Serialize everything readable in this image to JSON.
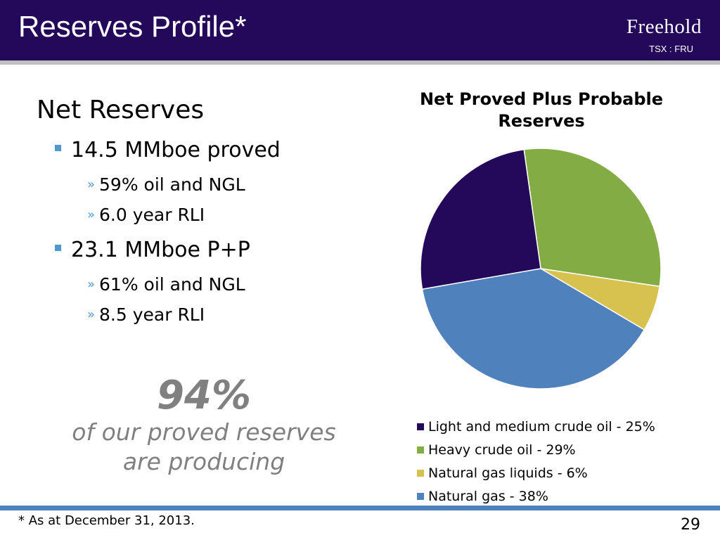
{
  "header": {
    "title": "Reserves Profile*",
    "logo": "Freehold",
    "ticker": "TSX : FRU",
    "bg_color": "#24085a"
  },
  "left": {
    "heading": "Net Reserves",
    "bullets": [
      {
        "text": "14.5 MMboe proved",
        "sub": [
          "59% oil and NGL",
          "6.0 year RLI"
        ]
      },
      {
        "text": "23.1 MMboe P+P",
        "sub": [
          "61% oil and NGL",
          "8.5 year RLI"
        ]
      }
    ],
    "highlight_value": "94%",
    "highlight_text": [
      "of our proved reserves",
      "are producing"
    ]
  },
  "chart_data": {
    "type": "pie",
    "title": [
      "Net Proved Plus Probable",
      "Reserves"
    ],
    "slices": [
      {
        "label": "Light and medium crude oil - 25%",
        "value": 25,
        "color": "#24085a"
      },
      {
        "label": "Heavy crude oil - 29%",
        "value": 29,
        "color": "#84ac44"
      },
      {
        "label": "Natural gas liquids - 6%",
        "value": 6,
        "color": "#d8c24f"
      },
      {
        "label": "Natural gas - 38%",
        "value": 38,
        "color": "#4f81bd"
      }
    ],
    "legend_position": "bottom"
  },
  "footer": {
    "note": "* As at December 31, 2013.",
    "page": "29"
  }
}
